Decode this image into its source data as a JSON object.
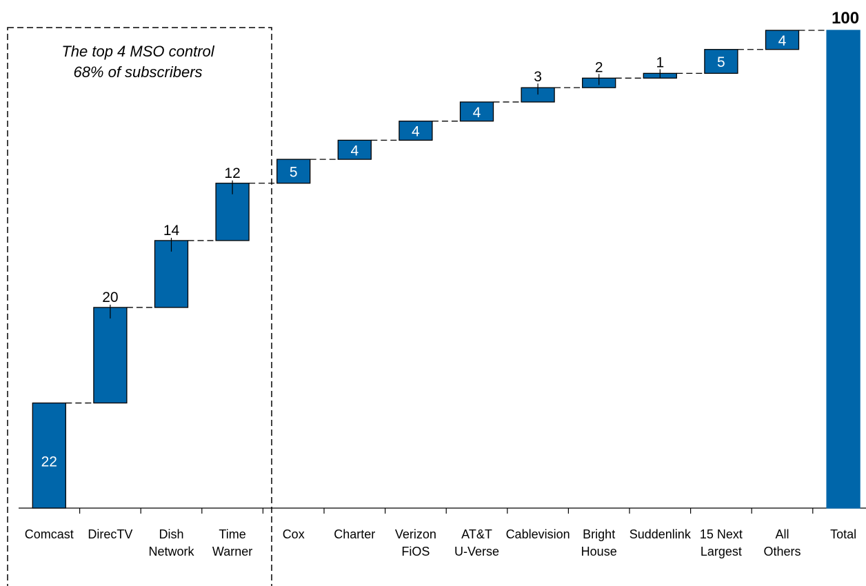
{
  "chart_data": {
    "type": "waterfall",
    "title": "",
    "xlabel": "",
    "ylabel": "",
    "ylim": [
      0,
      100
    ],
    "grid": false,
    "legend": "none",
    "bar_color": "#0066aa",
    "categories": [
      [
        "Comcast"
      ],
      [
        "DirecTV"
      ],
      [
        "Dish",
        "Network"
      ],
      [
        "Time",
        "Warner"
      ],
      [
        "Cox"
      ],
      [
        "Charter"
      ],
      [
        "Verizon",
        "FiOS"
      ],
      [
        "AT&T",
        "U-Verse"
      ],
      [
        "Cablevision"
      ],
      [
        "Bright",
        "House"
      ],
      [
        "Suddenlink"
      ],
      [
        "15 Next",
        "Largest"
      ],
      [
        "All",
        "Others"
      ],
      [
        "Total"
      ]
    ],
    "values": [
      22,
      20,
      14,
      12,
      5,
      4,
      4,
      4,
      3,
      2,
      1,
      5,
      4,
      100
    ],
    "total_index": 13,
    "annotation": [
      "The top 4 MSO control",
      "68% of subscribers"
    ]
  }
}
